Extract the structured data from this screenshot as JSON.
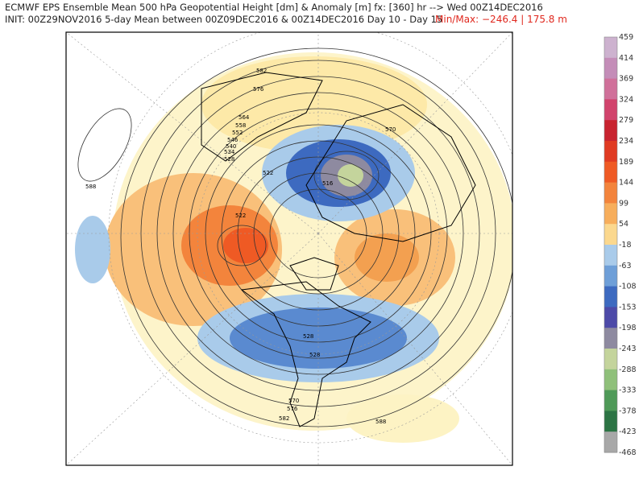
{
  "header": {
    "line1": "ECMWF EPS Ensemble Mean 500 hPa Geopotential Height [dm] & Anomaly [m]  fx: [360] hr --> Wed 00Z14DEC2016",
    "line2": "INIT: 00Z29NOV2016 5-day Mean between 00Z09DEC2016 & 00Z14DEC2016   Day 10 - Day 15",
    "minmax": "Min/Max: −246.4 | 175.8 m"
  },
  "colorbar": {
    "ticks": [
      459,
      414,
      369,
      324,
      279,
      234,
      189,
      144,
      99,
      54,
      -18,
      -63,
      -108,
      -153,
      -198,
      -243,
      -288,
      -333,
      -378,
      -423,
      -468
    ],
    "colors": [
      "#cdb2cf",
      "#c48db8",
      "#d0709a",
      "#d1436c",
      "#c8232f",
      "#e03a22",
      "#ef5a24",
      "#f3843c",
      "#f7ae5c",
      "#fbd88e",
      "#a9cbea",
      "#6e9fd8",
      "#3d6ac0",
      "#4d4aa8",
      "#8e8aa0",
      "#c4d49c",
      "#8fc07a",
      "#4f9a58",
      "#2c7444",
      "#a8a8a8"
    ]
  },
  "contour_labels": [
    582,
    576,
    564,
    558,
    552,
    546,
    540,
    534,
    528,
    522,
    516,
    570,
    522,
    588,
    528,
    528,
    570,
    576,
    582,
    588
  ]
}
